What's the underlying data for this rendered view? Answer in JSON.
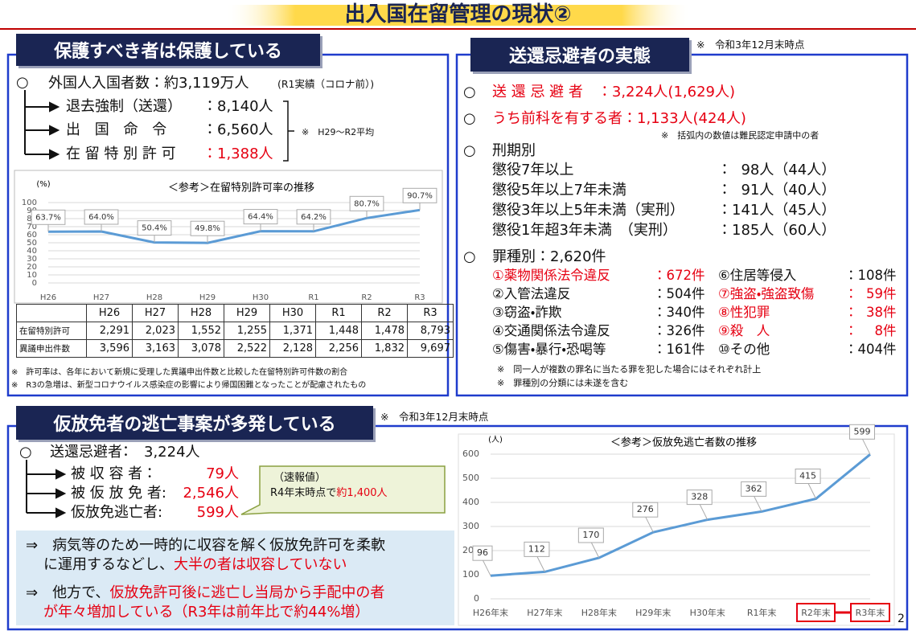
{
  "title": "出入国在留管理の現状②",
  "protect": {
    "heading": "保護すべき者は保護している",
    "entrants": "外国人入国者数：約3,119万人",
    "entrants_note": "(R1実績（コロナ前）)",
    "outcomes": [
      {
        "label": "退去強制（送還）",
        "value": "：8,140人"
      },
      {
        "label": "出 国 命 令",
        "value": "：6,560人"
      },
      {
        "label": "在 留 特 別 許 可",
        "value": "：1,388人"
      }
    ],
    "average_note": "※　H29～R2平均",
    "table": {
      "header": [
        "H26",
        "H27",
        "H28",
        "H29",
        "H30",
        "R1",
        "R2",
        "R3"
      ],
      "rows": [
        [
          "在留特別許可",
          "2,291",
          "2,023",
          "1,552",
          "1,255",
          "1,371",
          "1,448",
          "1,478",
          "8,793"
        ],
        [
          "異議申出件数",
          "3,596",
          "3,163",
          "3,078",
          "2,522",
          "2,128",
          "2,256",
          "1,832",
          "9,697"
        ]
      ]
    },
    "notes": [
      "※　許可率は、各年において新規に受理した異議申出件数と比較した在留特別許可件数の割合",
      "※　R3の急増は、新型コロナウイルス感染症の影響により帰国困難となったことが配慮されたもの"
    ]
  },
  "evasion": {
    "heading": "送還忌避者の実態",
    "as_of": "※　令和3年12月末時点",
    "total": "送 還 忌 避 者　：3,224人(1,629人)",
    "convicted": "うち前科を有する者：1,133人(424人)",
    "paren_note": "※　括弧内の数値は難民認定申請中の者",
    "sentence_heading": "刑期別",
    "sentences": [
      {
        "label": "懲役7年以上",
        "value": "：  98人（44人）"
      },
      {
        "label": "懲役5年以上7年未満",
        "value": "：  91人（40人）"
      },
      {
        "label": "懲役3年以上5年未満（実刑）",
        "value": "：141人（45人）"
      },
      {
        "label": "懲役1年超3年未満　（実刑）",
        "value": "：185人（60人）"
      }
    ],
    "crime_heading": "罪種別：2,620件",
    "crimes": [
      {
        "label": "①薬物関係法令違反",
        "value": "：672件"
      },
      {
        "label": "②入管法違反",
        "value": "：504件"
      },
      {
        "label": "③窃盗・詐欺",
        "value": "：340件"
      },
      {
        "label": "④交通関係法令違反",
        "value": "：326件"
      },
      {
        "label": "⑤傷害・暴行・恐喝等",
        "value": "：161件"
      },
      {
        "label": "⑥住居等侵入",
        "value": "：108件"
      },
      {
        "label": "⑦強盗・強盗致傷",
        "value": "：  59件"
      },
      {
        "label": "⑧性犯罪",
        "value": "：  38件"
      },
      {
        "label": "⑨殺　人",
        "value": "：    8件"
      },
      {
        "label": "⑩その他",
        "value": "：404件"
      }
    ],
    "notes": [
      "※　同一人が複数の罪名に当たる罪を犯した場合にはそれぞれ計上",
      "※　罪種別の分類には未遂を含む"
    ]
  },
  "abscond": {
    "heading": "仮放免者の逃亡事案が多発している",
    "as_of": "※　令和3年12月末時点",
    "total": "送還忌避者：　3,224人",
    "items": [
      {
        "label": "被 収 容 者：",
        "value": "79人"
      },
      {
        "label": "被 仮 放 免 者:",
        "value": "2,546人"
      },
      {
        "label": "仮放免逃亡者:",
        "value": "599人"
      }
    ],
    "callout": {
      "line1": "（速報値）",
      "line2": "R4年末時点で",
      "highlight": "約1,400人"
    },
    "points": [
      {
        "parts": [
          "⇒　病気等のため一時的に収容を解く仮放免許可を柔軟",
          "に運用するなどし、",
          "大半の者は収容していない"
        ]
      },
      {
        "parts": [
          "⇒　他方で、",
          "仮放免許可後に逃亡し当局から手配中の者",
          "が年々増加している（R3年は前年比で約44%増）"
        ]
      }
    ]
  },
  "page_number": "2",
  "chart_data": [
    {
      "type": "line",
      "title": "＜参考＞在留特別許可率の推移",
      "y_label": "(%)",
      "categories": [
        "H26",
        "H27",
        "H28",
        "H29",
        "H30",
        "R1",
        "R2",
        "R3"
      ],
      "values": [
        63.7,
        64.0,
        50.4,
        49.8,
        64.4,
        64.2,
        80.7,
        90.7
      ],
      "value_labels": [
        "63.7%",
        "64.0%",
        "50.4%",
        "49.8%",
        "64.4%",
        "64.2%",
        "80.7%",
        "90.7%"
      ],
      "color": "#5b9bd5",
      "ylim": [
        0,
        100
      ],
      "yticks": [
        0,
        10,
        20,
        30,
        40,
        50,
        60,
        70,
        80,
        90,
        100
      ],
      "grid": true
    },
    {
      "type": "line",
      "title": "＜参考＞仮放免逃亡者数の推移",
      "y_label": "(人)",
      "categories": [
        "H26年末",
        "H27年末",
        "H28年末",
        "H29年末",
        "H30年末",
        "R1年末",
        "R2年末",
        "R3年末"
      ],
      "values": [
        96,
        112,
        170,
        276,
        328,
        362,
        415,
        599
      ],
      "color": "#5b9bd5",
      "ylim": [
        0,
        600
      ],
      "yticks": [
        0,
        100,
        200,
        300,
        400,
        500,
        600
      ],
      "grid": true
    }
  ]
}
